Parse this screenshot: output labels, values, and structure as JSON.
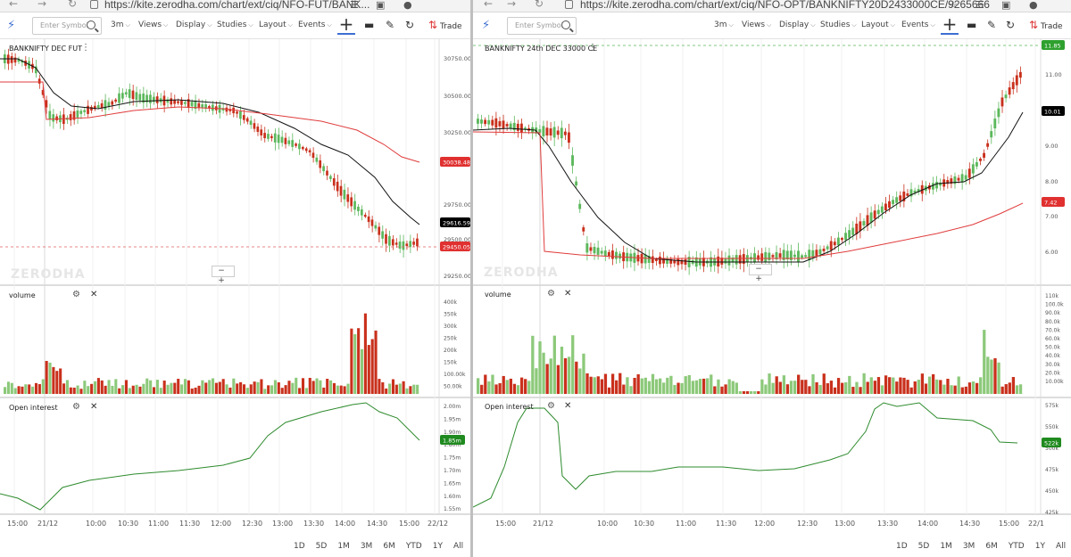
{
  "left": {
    "url": "https://kite.zerodha.com/chart/ext/ciq/NFO-FUT/BANK...",
    "symbol_placeholder": "Enter Symbol",
    "menu": [
      "3m",
      "Views",
      "Display",
      "Studies",
      "Layout",
      "Events"
    ],
    "trade_label": "Trade",
    "symbol": "BANKNIFTY DEC FUT",
    "watermark": "ZERODHA",
    "zoom_label": "− +",
    "volume_label": "volume",
    "oi_label": "Open interest",
    "price_axis": [
      "30750.00",
      "30500.00",
      "30250.00",
      "29750.00",
      "29500.00",
      "29250.00"
    ],
    "price_badges": [
      {
        "value": "30038.48",
        "color": "#e03030"
      },
      {
        "value": "29616.59",
        "color": "#000000"
      },
      {
        "value": "29450.05",
        "color": "#e03030"
      }
    ],
    "volume_axis": [
      "400k",
      "350k",
      "300k",
      "250k",
      "200k",
      "150k",
      "100.00k",
      "50.00k"
    ],
    "oi_axis": [
      "2.00m",
      "1.95m",
      "1.90m",
      "1.80m",
      "1.75m",
      "1.70m",
      "1.65m",
      "1.60m",
      "1.55m"
    ],
    "oi_badge": {
      "value": "1.85m",
      "color": "#1f8a1f"
    },
    "time_axis": [
      "15:00",
      "21/12",
      "10:00",
      "10:30",
      "11:00",
      "11:30",
      "12:00",
      "12:30",
      "13:00",
      "13:30",
      "14:00",
      "14:30",
      "15:00",
      "22/12"
    ],
    "ranges": [
      "1D",
      "5D",
      "1M",
      "3M",
      "6M",
      "YTD",
      "1Y",
      "All"
    ]
  },
  "right": {
    "url": "https://kite.zerodha.com/chart/ext/ciq/NFO-OPT/BANKNIFTY20D2433000CE/9265666",
    "symbol_placeholder": "Enter Symbol",
    "menu": [
      "3m",
      "Views",
      "Display",
      "Studies",
      "Layout",
      "Events"
    ],
    "trade_label": "Trade",
    "symbol": "BANKNIFTY 24th DEC 33000 CE",
    "watermark": "ZERODHA",
    "zoom_label": "− +",
    "volume_label": "volume",
    "oi_label": "Open interest",
    "price_axis": [
      "11.00",
      "9.00",
      "8.00",
      "7.00",
      "6.00"
    ],
    "price_badges": [
      {
        "value": "11.85",
        "color": "#2ea02e"
      },
      {
        "value": "10.01",
        "color": "#000000"
      },
      {
        "value": "7.42",
        "color": "#e03030"
      }
    ],
    "volume_axis": [
      "110k",
      "100.0k",
      "90.0k",
      "80.0k",
      "70.0k",
      "60.0k",
      "50.0k",
      "40.0k",
      "30.0k",
      "20.0k",
      "10.00k"
    ],
    "oi_axis": [
      "575k",
      "550k",
      "500k",
      "475k",
      "450k",
      "425k"
    ],
    "oi_badge": {
      "value": "522k",
      "color": "#1f8a1f"
    },
    "time_axis": [
      "15:00",
      "21/12",
      "10:00",
      "10:30",
      "11:00",
      "11:30",
      "12:00",
      "12:30",
      "13:00",
      "13:30",
      "14:00",
      "14:30",
      "15:00",
      "22/1"
    ],
    "ranges": [
      "1D",
      "5D",
      "1M",
      "3M",
      "6M",
      "YTD",
      "1Y",
      "All"
    ]
  },
  "colors": {
    "up": "#5cb85c",
    "down": "#c9301c",
    "avg": "#111111",
    "vwap": "#e03c3c",
    "oi": "#2e8b2e",
    "accent": "#3d6fd1"
  }
}
